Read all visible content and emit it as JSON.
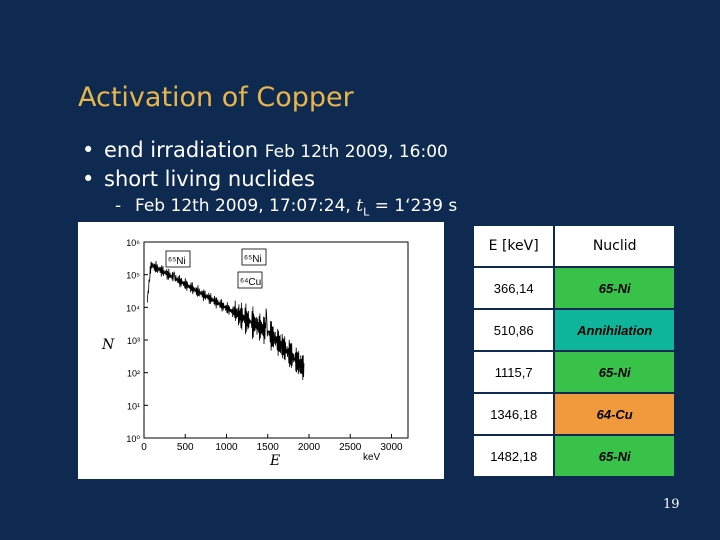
{
  "title": "Activation of Copper",
  "bullets": [
    {
      "main": "end irradiation ",
      "small": "Feb 12th 2009, 16:00"
    },
    {
      "main": "short living nuclides",
      "small": ""
    }
  ],
  "sub_bullet": {
    "date": "Feb 12th 2009, 17:07:24,",
    "t_symbol": "t",
    "t_sub": "L",
    "value": "= 1‘239 s"
  },
  "spectrum": {
    "y_ticks": [
      "10⁰",
      "10¹",
      "10²",
      "10³",
      "10⁴",
      "10⁵",
      "10⁶"
    ],
    "x_ticks": [
      "0",
      "500",
      "1000",
      "1500",
      "2000",
      "2500",
      "3000"
    ],
    "x_label": "E",
    "x_unit": "keV",
    "y_label": "N",
    "peak_labels": [
      "⁶⁵Ni",
      "⁶⁵Ni",
      "⁶⁴Cu"
    ],
    "colors": {
      "bg": "#ffffff",
      "line": "#000000"
    }
  },
  "table": {
    "headers": [
      "E [keV]",
      "Nuclid"
    ],
    "rows": [
      {
        "energy": "366,14",
        "nuclid": "65-Ni",
        "color": "#39c24a"
      },
      {
        "energy": "510,86",
        "nuclid": "Annihilation",
        "color": "#0fb59a"
      },
      {
        "energy": "1115,7",
        "nuclid": "65-Ni",
        "color": "#39c24a"
      },
      {
        "energy": "1346,18",
        "nuclid": "64-Cu",
        "color": "#f19a3d"
      },
      {
        "energy": "1482,18",
        "nuclid": "65-Ni",
        "color": "#39c24a"
      }
    ]
  },
  "page_number": "19",
  "colors": {
    "background": "#0e2a50",
    "title": "#e8b64a",
    "text": "#ffffff"
  }
}
